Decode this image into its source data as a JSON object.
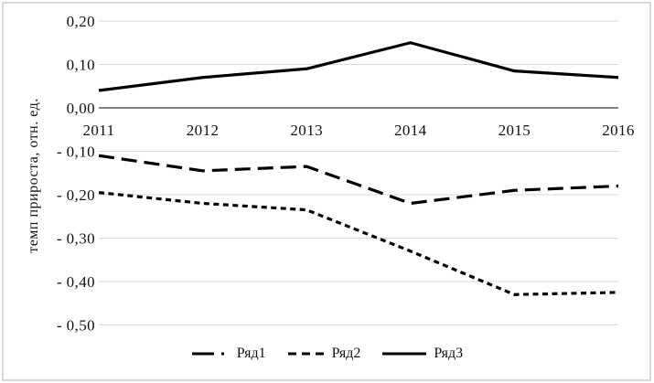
{
  "chart_data": {
    "type": "line",
    "title": "",
    "ylabel": "темп прироста, отн. ед.",
    "xlabel": "",
    "x": [
      2011,
      2012,
      2013,
      2014,
      2015,
      2016
    ],
    "x_tick_labels": [
      "2011",
      "2012",
      "2013",
      "2014",
      "2015",
      "2016"
    ],
    "y_ticks": [
      0.2,
      0.1,
      0.0,
      -0.1,
      -0.2,
      -0.3,
      -0.4,
      -0.5
    ],
    "y_tick_labels": [
      "0,20",
      "0,10",
      "0,00",
      "- 0,10",
      "- 0,20",
      "- 0,30",
      "- 0,40",
      "- 0,50"
    ],
    "ylim": [
      -0.5,
      0.2
    ],
    "grid": true,
    "legend_position": "bottom",
    "line_color": "#000000",
    "grid_color": "#d9d9d9",
    "axis_color": "#000000",
    "series": [
      {
        "name": "Ряд1",
        "style": "long-dash",
        "values": [
          -0.11,
          -0.145,
          -0.135,
          -0.22,
          -0.19,
          -0.18
        ]
      },
      {
        "name": "Ряд2",
        "style": "short-dash",
        "values": [
          -0.195,
          -0.22,
          -0.235,
          -0.33,
          -0.43,
          -0.425
        ]
      },
      {
        "name": "Ряд3",
        "style": "solid",
        "values": [
          0.04,
          0.07,
          0.09,
          0.15,
          0.085,
          0.07
        ]
      }
    ]
  }
}
